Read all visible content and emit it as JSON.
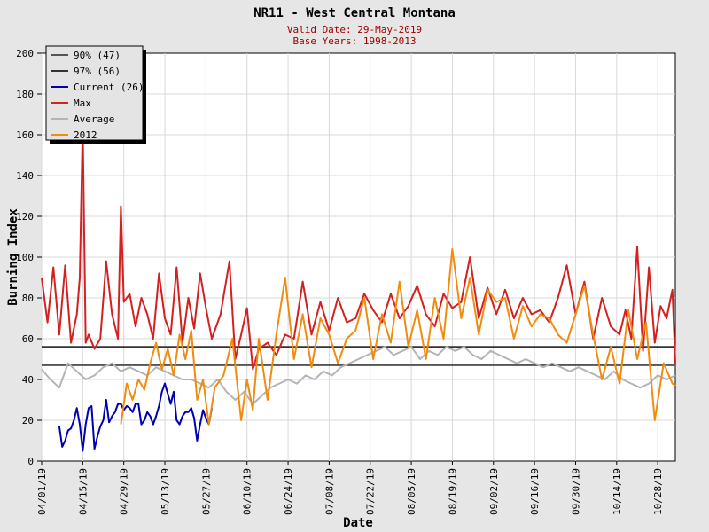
{
  "chart_data": {
    "type": "line",
    "title": "NR11 - West Central Montana",
    "subtitle_lines": [
      "Valid Date: 29-May-2019",
      "Base Years: 1998-2013"
    ],
    "xlabel": "Date",
    "ylabel": "Burning Index",
    "xlim": [
      "2019-04-01",
      "2019-11-03"
    ],
    "ylim": [
      0,
      200
    ],
    "y_ticks": [
      0,
      20,
      40,
      60,
      80,
      100,
      120,
      140,
      160,
      180,
      200
    ],
    "x_ticks": [
      "04/01/19",
      "04/15/19",
      "04/29/19",
      "05/13/19",
      "05/27/19",
      "06/10/19",
      "06/24/19",
      "07/08/19",
      "07/22/19",
      "08/05/19",
      "08/19/19",
      "09/02/19",
      "09/16/19",
      "09/30/19",
      "10/14/19",
      "10/28/19"
    ],
    "grid": true,
    "legend_position": "top-left",
    "series": [
      {
        "name": "90% (47)",
        "color": "#555555",
        "kind": "hline",
        "value": 47
      },
      {
        "name": "97% (56)",
        "color": "#333333",
        "kind": "hline",
        "value": 56
      },
      {
        "name": "Current (26)",
        "color": "#0000b0",
        "x": [
          "2019-04-07",
          "2019-04-08",
          "2019-04-09",
          "2019-04-10",
          "2019-04-11",
          "2019-04-12",
          "2019-04-13",
          "2019-04-14",
          "2019-04-15",
          "2019-04-16",
          "2019-04-17",
          "2019-04-18",
          "2019-04-19",
          "2019-04-20",
          "2019-04-21",
          "2019-04-22",
          "2019-04-23",
          "2019-04-24",
          "2019-04-25",
          "2019-04-26",
          "2019-04-27",
          "2019-04-28",
          "2019-04-29",
          "2019-04-30",
          "2019-05-01",
          "2019-05-02",
          "2019-05-03",
          "2019-05-04",
          "2019-05-05",
          "2019-05-06",
          "2019-05-07",
          "2019-05-08",
          "2019-05-09",
          "2019-05-10",
          "2019-05-11",
          "2019-05-12",
          "2019-05-13",
          "2019-05-14",
          "2019-05-15",
          "2019-05-16",
          "2019-05-17",
          "2019-05-18",
          "2019-05-19",
          "2019-05-20",
          "2019-05-21",
          "2019-05-22",
          "2019-05-23",
          "2019-05-24",
          "2019-05-25",
          "2019-05-26",
          "2019-05-27",
          "2019-05-28",
          "2019-05-29"
        ],
        "y": [
          17,
          7,
          10,
          15,
          16,
          20,
          26,
          18,
          5,
          18,
          26,
          27,
          6,
          12,
          17,
          20,
          30,
          19,
          22,
          24,
          28,
          28,
          25,
          27,
          26,
          24,
          28,
          28,
          18,
          20,
          24,
          22,
          18,
          22,
          27,
          34,
          38,
          33,
          28,
          34,
          20,
          18,
          22,
          24,
          24,
          26,
          21,
          10,
          18,
          25,
          21,
          18,
          26
        ]
      },
      {
        "name": "Max",
        "color": "#d42020",
        "x": [
          "2019-04-01",
          "2019-04-03",
          "2019-04-05",
          "2019-04-07",
          "2019-04-09",
          "2019-04-11",
          "2019-04-13",
          "2019-04-14",
          "2019-04-15",
          "2019-04-16",
          "2019-04-17",
          "2019-04-19",
          "2019-04-21",
          "2019-04-23",
          "2019-04-25",
          "2019-04-27",
          "2019-04-28",
          "2019-04-29",
          "2019-05-01",
          "2019-05-03",
          "2019-05-05",
          "2019-05-07",
          "2019-05-09",
          "2019-05-11",
          "2019-05-13",
          "2019-05-15",
          "2019-05-17",
          "2019-05-19",
          "2019-05-21",
          "2019-05-23",
          "2019-05-25",
          "2019-05-27",
          "2019-05-29",
          "2019-06-01",
          "2019-06-04",
          "2019-06-06",
          "2019-06-08",
          "2019-06-10",
          "2019-06-12",
          "2019-06-14",
          "2019-06-17",
          "2019-06-20",
          "2019-06-23",
          "2019-06-26",
          "2019-06-29",
          "2019-07-02",
          "2019-07-05",
          "2019-07-08",
          "2019-07-11",
          "2019-07-14",
          "2019-07-17",
          "2019-07-20",
          "2019-07-23",
          "2019-07-26",
          "2019-07-29",
          "2019-08-01",
          "2019-08-04",
          "2019-08-07",
          "2019-08-10",
          "2019-08-13",
          "2019-08-16",
          "2019-08-19",
          "2019-08-22",
          "2019-08-25",
          "2019-08-28",
          "2019-08-31",
          "2019-09-03",
          "2019-09-06",
          "2019-09-09",
          "2019-09-12",
          "2019-09-15",
          "2019-09-18",
          "2019-09-21",
          "2019-09-24",
          "2019-09-27",
          "2019-09-30",
          "2019-10-03",
          "2019-10-06",
          "2019-10-09",
          "2019-10-12",
          "2019-10-15",
          "2019-10-17",
          "2019-10-19",
          "2019-10-21",
          "2019-10-23",
          "2019-10-25",
          "2019-10-27",
          "2019-10-29",
          "2019-10-31",
          "2019-11-02",
          "2019-11-03"
        ],
        "y": [
          90,
          68,
          95,
          62,
          96,
          58,
          72,
          90,
          165,
          58,
          62,
          55,
          60,
          98,
          72,
          60,
          125,
          78,
          82,
          66,
          80,
          72,
          60,
          92,
          70,
          62,
          95,
          58,
          80,
          65,
          92,
          75,
          60,
          72,
          98,
          50,
          62,
          75,
          45,
          55,
          58,
          52,
          62,
          60,
          88,
          62,
          78,
          64,
          80,
          68,
          70,
          82,
          74,
          68,
          82,
          70,
          76,
          86,
          72,
          66,
          82,
          75,
          78,
          100,
          70,
          85,
          72,
          84,
          70,
          80,
          72,
          74,
          68,
          80,
          96,
          72,
          88,
          60,
          80,
          66,
          62,
          74,
          60,
          105,
          54,
          95,
          58,
          76,
          70,
          84,
          48
        ]
      },
      {
        "name": "Average",
        "color": "#b4b4b4",
        "x": [
          "2019-04-01",
          "2019-04-04",
          "2019-04-07",
          "2019-04-10",
          "2019-04-13",
          "2019-04-16",
          "2019-04-19",
          "2019-04-22",
          "2019-04-25",
          "2019-04-28",
          "2019-05-01",
          "2019-05-04",
          "2019-05-07",
          "2019-05-10",
          "2019-05-13",
          "2019-05-16",
          "2019-05-19",
          "2019-05-22",
          "2019-05-25",
          "2019-05-28",
          "2019-05-31",
          "2019-06-03",
          "2019-06-06",
          "2019-06-09",
          "2019-06-12",
          "2019-06-15",
          "2019-06-18",
          "2019-06-21",
          "2019-06-24",
          "2019-06-27",
          "2019-06-30",
          "2019-07-03",
          "2019-07-06",
          "2019-07-09",
          "2019-07-12",
          "2019-07-15",
          "2019-07-18",
          "2019-07-21",
          "2019-07-24",
          "2019-07-27",
          "2019-07-30",
          "2019-08-02",
          "2019-08-05",
          "2019-08-08",
          "2019-08-11",
          "2019-08-14",
          "2019-08-17",
          "2019-08-20",
          "2019-08-23",
          "2019-08-26",
          "2019-08-29",
          "2019-09-01",
          "2019-09-04",
          "2019-09-07",
          "2019-09-10",
          "2019-09-13",
          "2019-09-16",
          "2019-09-19",
          "2019-09-22",
          "2019-09-25",
          "2019-09-28",
          "2019-10-01",
          "2019-10-04",
          "2019-10-07",
          "2019-10-10",
          "2019-10-13",
          "2019-10-16",
          "2019-10-19",
          "2019-10-22",
          "2019-10-25",
          "2019-10-28",
          "2019-10-31",
          "2019-11-03"
        ],
        "y": [
          45,
          40,
          36,
          48,
          44,
          40,
          42,
          46,
          48,
          44,
          46,
          44,
          42,
          46,
          44,
          42,
          40,
          40,
          38,
          36,
          40,
          34,
          30,
          34,
          28,
          32,
          36,
          38,
          40,
          38,
          42,
          40,
          44,
          42,
          46,
          48,
          50,
          52,
          54,
          56,
          52,
          54,
          56,
          50,
          54,
          52,
          56,
          54,
          56,
          52,
          50,
          54,
          52,
          50,
          48,
          50,
          48,
          46,
          48,
          46,
          44,
          46,
          44,
          42,
          40,
          44,
          40,
          38,
          36,
          38,
          42,
          40,
          42
        ]
      },
      {
        "name": "2012",
        "color": "#f08c10",
        "x": [
          "2019-04-28",
          "2019-04-30",
          "2019-05-02",
          "2019-05-04",
          "2019-05-06",
          "2019-05-08",
          "2019-05-10",
          "2019-05-12",
          "2019-05-14",
          "2019-05-16",
          "2019-05-18",
          "2019-05-20",
          "2019-05-22",
          "2019-05-24",
          "2019-05-26",
          "2019-05-28",
          "2019-05-30",
          "2019-06-02",
          "2019-06-05",
          "2019-06-08",
          "2019-06-10",
          "2019-06-12",
          "2019-06-14",
          "2019-06-17",
          "2019-06-20",
          "2019-06-23",
          "2019-06-26",
          "2019-06-29",
          "2019-07-02",
          "2019-07-05",
          "2019-07-08",
          "2019-07-11",
          "2019-07-14",
          "2019-07-17",
          "2019-07-20",
          "2019-07-23",
          "2019-07-26",
          "2019-07-29",
          "2019-08-01",
          "2019-08-04",
          "2019-08-07",
          "2019-08-10",
          "2019-08-13",
          "2019-08-16",
          "2019-08-19",
          "2019-08-22",
          "2019-08-25",
          "2019-08-28",
          "2019-08-31",
          "2019-09-03",
          "2019-09-06",
          "2019-09-09",
          "2019-09-12",
          "2019-09-15",
          "2019-09-18",
          "2019-09-21",
          "2019-09-24",
          "2019-09-27",
          "2019-09-30",
          "2019-10-03",
          "2019-10-06",
          "2019-10-09",
          "2019-10-12",
          "2019-10-15",
          "2019-10-18",
          "2019-10-21",
          "2019-10-24",
          "2019-10-27",
          "2019-10-30",
          "2019-11-02",
          "2019-11-03"
        ],
        "y": [
          18,
          38,
          30,
          40,
          35,
          48,
          58,
          45,
          55,
          42,
          62,
          50,
          64,
          30,
          40,
          18,
          36,
          42,
          60,
          20,
          40,
          25,
          60,
          30,
          62,
          90,
          50,
          72,
          46,
          70,
          62,
          48,
          60,
          64,
          80,
          50,
          72,
          58,
          88,
          56,
          74,
          50,
          80,
          60,
          104,
          70,
          90,
          62,
          84,
          78,
          80,
          60,
          76,
          66,
          72,
          70,
          62,
          58,
          72,
          86,
          62,
          40,
          56,
          38,
          74,
          50,
          68,
          20,
          48,
          38,
          37
        ]
      }
    ]
  }
}
